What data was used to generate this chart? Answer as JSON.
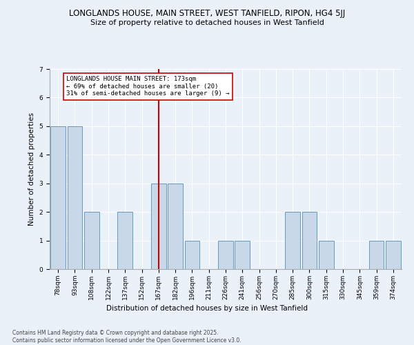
{
  "title": "LONGLANDS HOUSE, MAIN STREET, WEST TANFIELD, RIPON, HG4 5JJ",
  "subtitle": "Size of property relative to detached houses in West Tanfield",
  "xlabel": "Distribution of detached houses by size in West Tanfield",
  "ylabel": "Number of detached properties",
  "categories": [
    "78sqm",
    "93sqm",
    "108sqm",
    "122sqm",
    "137sqm",
    "152sqm",
    "167sqm",
    "182sqm",
    "196sqm",
    "211sqm",
    "226sqm",
    "241sqm",
    "256sqm",
    "270sqm",
    "285sqm",
    "300sqm",
    "315sqm",
    "330sqm",
    "345sqm",
    "359sqm",
    "374sqm"
  ],
  "values": [
    5,
    5,
    2,
    0,
    2,
    0,
    3,
    3,
    1,
    0,
    1,
    1,
    0,
    0,
    2,
    2,
    1,
    0,
    0,
    1,
    1
  ],
  "bar_color": "#c8d8e8",
  "bar_edge_color": "#6699bb",
  "highlight_bar_index": 6,
  "annotation_text": "LONGLANDS HOUSE MAIN STREET: 173sqm\n← 69% of detached houses are smaller (20)\n31% of semi-detached houses are larger (9) →",
  "annotation_box_color": "#ffffff",
  "annotation_border_color": "#cc0000",
  "vline_color": "#cc0000",
  "ylim": [
    0,
    7
  ],
  "yticks": [
    0,
    1,
    2,
    3,
    4,
    5,
    6,
    7
  ],
  "footer_text": "Contains HM Land Registry data © Crown copyright and database right 2025.\nContains public sector information licensed under the Open Government Licence v3.0.",
  "background_color": "#eaf1f8",
  "title_fontsize": 8.5,
  "subtitle_fontsize": 8.0,
  "axis_label_fontsize": 7.5,
  "tick_fontsize": 6.5,
  "annotation_fontsize": 6.5,
  "footer_fontsize": 5.5
}
